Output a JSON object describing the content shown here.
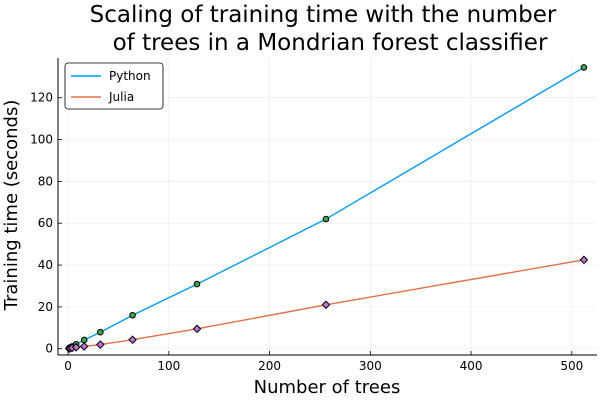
{
  "chart_data": {
    "type": "line",
    "title_lines": [
      "Scaling of training time with the number",
      "of trees in a Mondrian forest classifier"
    ],
    "xlabel": "Number of trees",
    "ylabel": "Training time (seconds)",
    "xlim": [
      -10,
      525
    ],
    "ylim": [
      -3,
      139
    ],
    "x_ticks": [
      0,
      100,
      200,
      300,
      400,
      500
    ],
    "y_ticks": [
      0,
      20,
      40,
      60,
      80,
      100,
      120
    ],
    "grid": true,
    "legend_position": "top-left",
    "x": [
      1,
      2,
      4,
      8,
      16,
      32,
      64,
      128,
      256,
      512
    ],
    "series": [
      {
        "name": "Python",
        "color": "#009af9",
        "marker": "circle",
        "marker_color": "#3da44d",
        "values": [
          0.3,
          0.6,
          1.1,
          2.1,
          4.2,
          7.9,
          16.0,
          30.9,
          62.0,
          134.5
        ]
      },
      {
        "name": "Julia",
        "color": "#e26f46",
        "marker": "diamond",
        "marker_color": "#c271d2",
        "values": [
          0.1,
          0.2,
          0.4,
          0.7,
          1.1,
          2.0,
          4.3,
          9.5,
          21.0,
          42.5
        ]
      }
    ]
  }
}
